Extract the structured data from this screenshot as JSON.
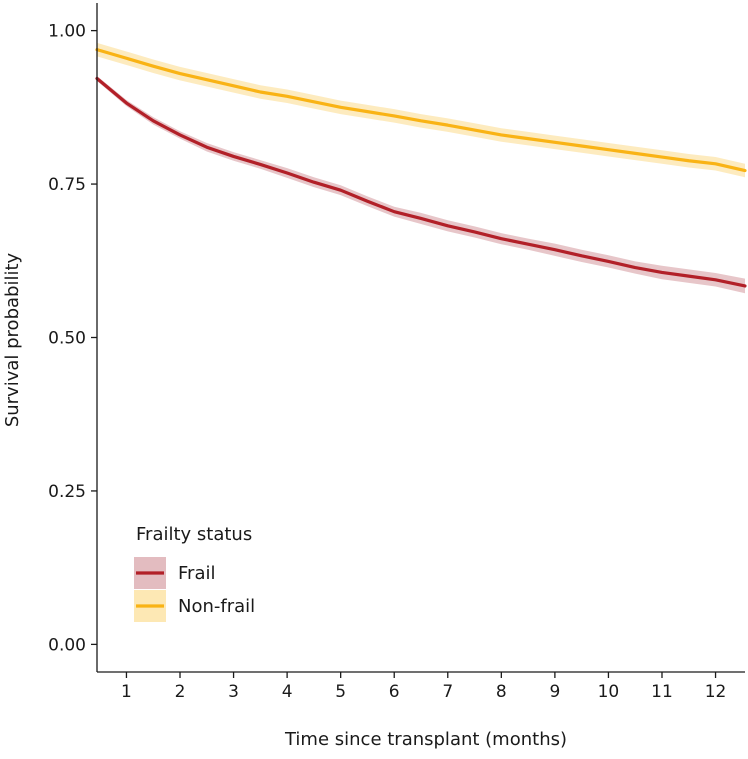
{
  "chart_data": {
    "type": "line",
    "title": "",
    "xlabel": "Time since transplant (months)",
    "ylabel": "Survival probability",
    "xlim": [
      0.45,
      12.55
    ],
    "ylim": [
      -0.045,
      1.045
    ],
    "x_ticks": [
      1,
      2,
      3,
      4,
      5,
      6,
      7,
      8,
      9,
      10,
      11,
      12
    ],
    "x_tick_labels": [
      "1",
      "2",
      "3",
      "4",
      "5",
      "6",
      "7",
      "8",
      "9",
      "10",
      "11",
      "12"
    ],
    "y_ticks": [
      0,
      0.25,
      0.5,
      0.75,
      1.0
    ],
    "y_tick_labels": [
      "0.00",
      "0.25",
      "0.50",
      "0.75",
      "1.00"
    ],
    "grid": false,
    "legend": {
      "title": "Frailty status",
      "position": "bottom-left"
    },
    "series": [
      {
        "name": "Frail",
        "color": "#b22028",
        "band_color": "#e3bcc0",
        "x": [
          0.45,
          1,
          1.5,
          2,
          2.5,
          3,
          3.5,
          4,
          4.5,
          5,
          5.5,
          6,
          6.5,
          7,
          7.5,
          8,
          8.5,
          9,
          9.5,
          10,
          10.5,
          11,
          11.5,
          12,
          12.55
        ],
        "y": [
          0.922,
          0.882,
          0.853,
          0.83,
          0.81,
          0.795,
          0.782,
          0.768,
          0.753,
          0.74,
          0.722,
          0.705,
          0.694,
          0.682,
          0.672,
          0.661,
          0.652,
          0.643,
          0.633,
          0.624,
          0.614,
          0.606,
          0.6,
          0.594,
          0.584
        ],
        "ci_halfwidth": [
          0.004,
          0.005,
          0.006,
          0.006,
          0.007,
          0.007,
          0.007,
          0.008,
          0.008,
          0.008,
          0.008,
          0.008,
          0.009,
          0.009,
          0.009,
          0.009,
          0.009,
          0.01,
          0.01,
          0.01,
          0.01,
          0.011,
          0.011,
          0.011,
          0.012
        ]
      },
      {
        "name": "Non-frail",
        "color": "#f9b315",
        "band_color": "#fde8b4",
        "x": [
          0.45,
          1,
          1.5,
          2,
          2.5,
          3,
          3.5,
          4,
          4.5,
          5,
          5.5,
          6,
          6.5,
          7,
          7.5,
          8,
          8.5,
          9,
          9.5,
          10,
          10.5,
          11,
          11.5,
          12,
          12.55
        ],
        "y": [
          0.969,
          0.955,
          0.942,
          0.93,
          0.92,
          0.91,
          0.9,
          0.893,
          0.884,
          0.875,
          0.868,
          0.861,
          0.853,
          0.846,
          0.838,
          0.83,
          0.824,
          0.818,
          0.812,
          0.806,
          0.8,
          0.794,
          0.788,
          0.783,
          0.772
        ]
      }
    ]
  }
}
